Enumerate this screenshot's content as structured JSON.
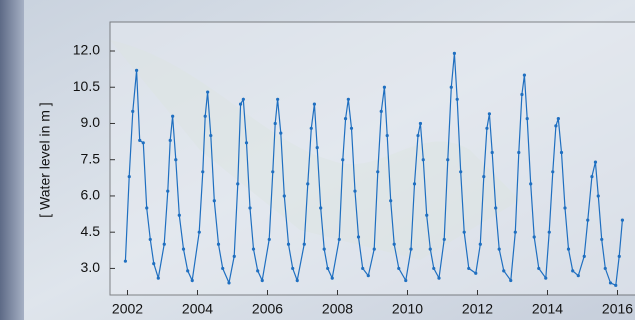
{
  "chart_data": {
    "type": "line",
    "y_label": "[ Water level in m ]",
    "xlim": [
      2001.5,
      2016.5
    ],
    "ylim": [
      1.9,
      13.2
    ],
    "xticks": [
      2002,
      2004,
      2006,
      2008,
      2010,
      2012,
      2014,
      2016
    ],
    "yticks": [
      {
        "value": 3,
        "label": "3.0"
      },
      {
        "value": 4.5,
        "label": "4.5"
      },
      {
        "value": 6,
        "label": "6.0"
      },
      {
        "value": 7.5,
        "label": "7.5"
      },
      {
        "value": 9,
        "label": "9.0"
      },
      {
        "value": 10.5,
        "label": "10.5"
      },
      {
        "value": 12,
        "label": "12.0"
      }
    ],
    "grid": false,
    "series": [
      {
        "color": "#1f6fc0",
        "x": [
          2001.94,
          2002.05,
          2002.15,
          2002.26,
          2002.35,
          2002.45,
          2002.55,
          2002.65,
          2002.75,
          2002.88,
          2003.05,
          2003.15,
          2003.22,
          2003.29,
          2003.38,
          2003.48,
          2003.6,
          2003.72,
          2003.85,
          2004.05,
          2004.15,
          2004.22,
          2004.29,
          2004.38,
          2004.48,
          2004.6,
          2004.72,
          2004.9,
          2005.05,
          2005.15,
          2005.23,
          2005.31,
          2005.4,
          2005.5,
          2005.6,
          2005.72,
          2005.85,
          2006.05,
          2006.15,
          2006.22,
          2006.29,
          2006.38,
          2006.48,
          2006.6,
          2006.72,
          2006.85,
          2007.05,
          2007.15,
          2007.25,
          2007.34,
          2007.42,
          2007.52,
          2007.62,
          2007.72,
          2007.85,
          2008.05,
          2008.15,
          2008.23,
          2008.31,
          2008.4,
          2008.5,
          2008.6,
          2008.72,
          2008.88,
          2009.05,
          2009.15,
          2009.25,
          2009.34,
          2009.42,
          2009.52,
          2009.62,
          2009.75,
          2009.95,
          2010.1,
          2010.2,
          2010.3,
          2010.37,
          2010.45,
          2010.55,
          2010.65,
          2010.75,
          2010.9,
          2011.05,
          2011.15,
          2011.25,
          2011.34,
          2011.42,
          2011.52,
          2011.62,
          2011.75,
          2011.95,
          2012.08,
          2012.18,
          2012.27,
          2012.34,
          2012.42,
          2012.52,
          2012.62,
          2012.75,
          2012.95,
          2013.08,
          2013.18,
          2013.27,
          2013.34,
          2013.42,
          2013.52,
          2013.62,
          2013.75,
          2013.95,
          2014.05,
          2014.15,
          2014.24,
          2014.31,
          2014.4,
          2014.5,
          2014.6,
          2014.72,
          2014.88,
          2015.05,
          2015.15,
          2015.27,
          2015.37,
          2015.45,
          2015.55,
          2015.65,
          2015.8,
          2015.95,
          2016.05,
          2016.14
        ],
        "values": [
          3.3,
          6.8,
          9.5,
          11.2,
          8.3,
          8.2,
          5.5,
          4.2,
          3.2,
          2.6,
          4.0,
          6.2,
          8.3,
          9.3,
          7.5,
          5.2,
          3.8,
          2.9,
          2.5,
          4.5,
          7.0,
          9.3,
          10.3,
          8.5,
          5.8,
          4.0,
          3.0,
          2.4,
          3.5,
          6.5,
          9.8,
          10.0,
          8.2,
          5.5,
          3.8,
          2.9,
          2.5,
          4.2,
          7.0,
          9.0,
          10.0,
          8.6,
          6.0,
          4.0,
          3.0,
          2.5,
          4.0,
          6.5,
          8.8,
          9.8,
          8.0,
          5.5,
          3.8,
          3.0,
          2.6,
          4.2,
          7.5,
          9.2,
          10.0,
          8.8,
          6.2,
          4.3,
          3.0,
          2.7,
          3.8,
          7.0,
          9.5,
          10.5,
          8.5,
          5.8,
          4.0,
          3.0,
          2.5,
          3.8,
          6.5,
          8.5,
          9.0,
          7.5,
          5.2,
          3.8,
          3.0,
          2.6,
          4.2,
          7.5,
          10.5,
          11.9,
          10.0,
          7.0,
          4.5,
          3.0,
          2.8,
          4.0,
          6.8,
          8.8,
          9.4,
          7.8,
          5.5,
          3.8,
          2.9,
          2.5,
          4.5,
          7.8,
          10.2,
          11.0,
          9.2,
          6.5,
          4.3,
          3.0,
          2.6,
          4.5,
          7.0,
          8.9,
          9.2,
          7.8,
          5.5,
          3.8,
          2.9,
          2.7,
          3.5,
          5.0,
          6.8,
          7.4,
          6.0,
          4.2,
          3.0,
          2.4,
          2.3,
          3.5,
          5.0
        ]
      }
    ]
  }
}
